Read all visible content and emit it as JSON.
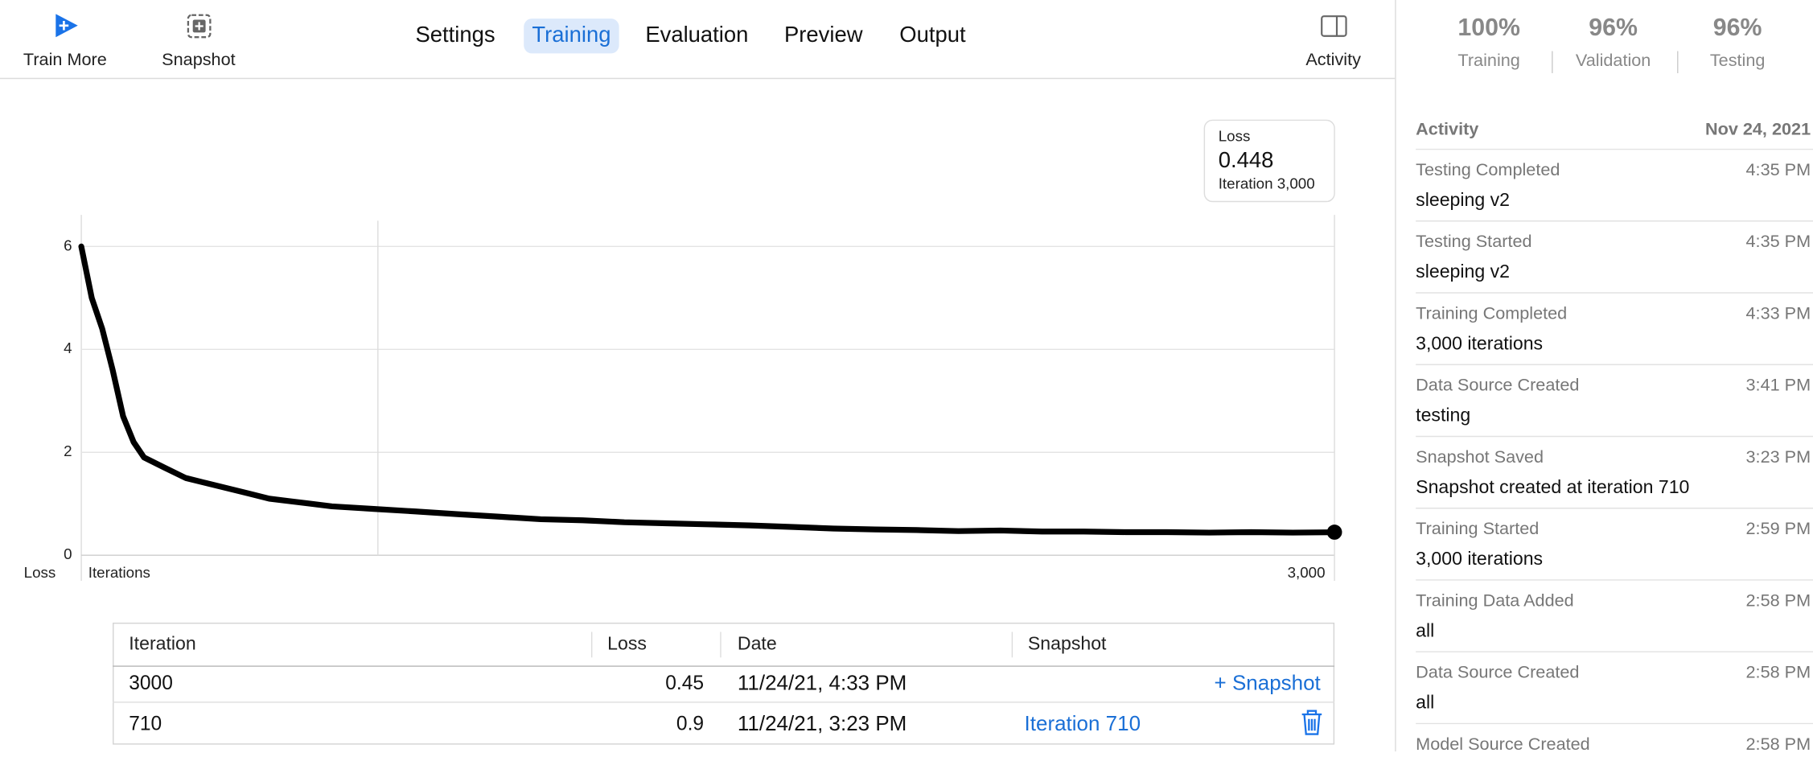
{
  "toolbar": {
    "train_more": "Train More",
    "snapshot": "Snapshot",
    "activity": "Activity",
    "tabs": [
      "Settings",
      "Training",
      "Evaluation",
      "Preview",
      "Output"
    ],
    "active_tab": "Training"
  },
  "metrics": [
    {
      "value": "100%",
      "label": "Training"
    },
    {
      "value": "96%",
      "label": "Validation"
    },
    {
      "value": "96%",
      "label": "Testing"
    }
  ],
  "chart_data": {
    "type": "line",
    "y_label": "Loss",
    "x_label": "Iterations",
    "color": "#000000",
    "x": [
      0,
      25,
      50,
      75,
      100,
      125,
      150,
      200,
      250,
      300,
      350,
      400,
      450,
      500,
      600,
      700,
      800,
      900,
      1000,
      1100,
      1200,
      1300,
      1400,
      1500,
      1600,
      1700,
      1800,
      1900,
      2000,
      2100,
      2200,
      2300,
      2400,
      2500,
      2600,
      2700,
      2800,
      2900,
      3000
    ],
    "values": [
      6.0,
      5.0,
      4.4,
      3.6,
      2.7,
      2.2,
      1.9,
      1.7,
      1.5,
      1.4,
      1.3,
      1.2,
      1.1,
      1.05,
      0.95,
      0.9,
      0.85,
      0.8,
      0.75,
      0.7,
      0.68,
      0.64,
      0.62,
      0.6,
      0.58,
      0.55,
      0.52,
      0.5,
      0.49,
      0.47,
      0.48,
      0.46,
      0.46,
      0.45,
      0.45,
      0.44,
      0.45,
      0.44,
      0.448
    ],
    "xlim": [
      0,
      3000
    ],
    "ylim": [
      0,
      6.5
    ],
    "yticks": [
      0,
      2,
      4,
      6
    ],
    "xticks": [
      {
        "value": 3000,
        "label": "3,000"
      }
    ],
    "grid": true,
    "tooltip": {
      "title": "Loss",
      "value": 0.448,
      "label": "Iteration 3,000"
    }
  },
  "table": {
    "columns": [
      "Iteration",
      "Loss",
      "Date",
      "Snapshot"
    ],
    "rows": [
      {
        "iteration": 3000,
        "loss": 0.45,
        "date": "11/24/21, 4:33 PM",
        "snapshot": "+ Snapshot"
      },
      {
        "iteration": 710,
        "loss": 0.9,
        "date": "11/24/21, 3:23 PM",
        "snapshot": "Iteration 710"
      }
    ]
  },
  "activity": {
    "title": "Activity",
    "date": "Nov 24, 2021",
    "items": [
      {
        "event": "Testing Completed",
        "time": "4:35 PM",
        "detail": "sleeping v2"
      },
      {
        "event": "Testing Started",
        "time": "4:35 PM",
        "detail": "sleeping v2"
      },
      {
        "event": "Training Completed",
        "time": "4:33 PM",
        "detail": "3,000 iterations"
      },
      {
        "event": "Data Source Created",
        "time": "3:41 PM",
        "detail": "testing"
      },
      {
        "event": "Snapshot Saved",
        "time": "3:23 PM",
        "detail": "Snapshot created at iteration 710"
      },
      {
        "event": "Training Started",
        "time": "2:59 PM",
        "detail": "3,000 iterations"
      },
      {
        "event": "Training Data Added",
        "time": "2:58 PM",
        "detail": "all"
      },
      {
        "event": "Data Source Created",
        "time": "2:58 PM",
        "detail": "all"
      },
      {
        "event": "Model Source Created",
        "time": "2:58 PM",
        "detail": ""
      }
    ]
  }
}
